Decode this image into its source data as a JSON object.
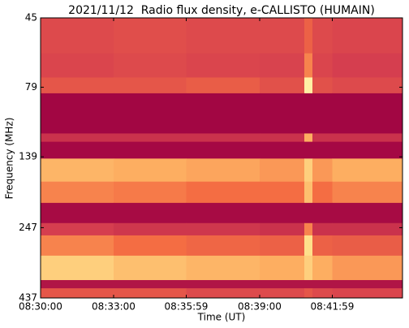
{
  "chart_data": {
    "type": "heatmap",
    "title": "2021/11/12  Radio flux density, e-CALLISTO (HUMAIN)",
    "xlabel": "Time (UT)",
    "ylabel": "Frequency (MHz)",
    "xlim": [
      "08:30:00",
      "08:44:52"
    ],
    "xticks": [
      "08:30:00",
      "08:33:00",
      "08:35:59",
      "08:39:00",
      "08:41:59"
    ],
    "ylim": [
      45,
      437
    ],
    "yticks": [
      45,
      79,
      139,
      247,
      437
    ],
    "y_scale": "log",
    "y_inverted": true,
    "x_bins": [
      "08:30:00",
      "08:33:00",
      "08:35:59",
      "08:39:00",
      "08:40:50",
      "08:41:10",
      "08:41:59",
      "08:44:52"
    ],
    "y_bins": [
      45,
      60,
      73,
      83,
      115,
      123,
      141,
      170,
      202,
      238,
      263,
      310,
      378,
      404,
      437
    ],
    "z": [
      [
        0.3,
        0.32,
        0.3,
        0.3,
        0.4,
        0.3,
        0.28
      ],
      [
        0.28,
        0.3,
        0.28,
        0.27,
        0.5,
        0.28,
        0.25
      ],
      [
        0.35,
        0.35,
        0.38,
        0.33,
        0.8,
        0.33,
        0.3
      ],
      [
        0.02,
        0.02,
        0.02,
        0.02,
        0.02,
        0.02,
        0.02
      ],
      [
        0.2,
        0.2,
        0.2,
        0.2,
        0.6,
        0.2,
        0.2
      ],
      [
        0.03,
        0.03,
        0.03,
        0.03,
        0.03,
        0.03,
        0.03
      ],
      [
        0.62,
        0.6,
        0.58,
        0.55,
        0.7,
        0.55,
        0.6
      ],
      [
        0.5,
        0.48,
        0.45,
        0.45,
        0.65,
        0.45,
        0.5
      ],
      [
        0.04,
        0.04,
        0.04,
        0.04,
        0.04,
        0.04,
        0.04
      ],
      [
        0.25,
        0.22,
        0.22,
        0.2,
        0.5,
        0.2,
        0.2
      ],
      [
        0.5,
        0.45,
        0.42,
        0.4,
        0.75,
        0.4,
        0.38
      ],
      [
        0.7,
        0.65,
        0.62,
        0.6,
        0.7,
        0.6,
        0.55
      ],
      [
        0.08,
        0.08,
        0.08,
        0.08,
        0.08,
        0.08,
        0.08
      ],
      [
        0.35,
        0.35,
        0.3,
        0.3,
        0.35,
        0.3,
        0.28
      ]
    ]
  }
}
